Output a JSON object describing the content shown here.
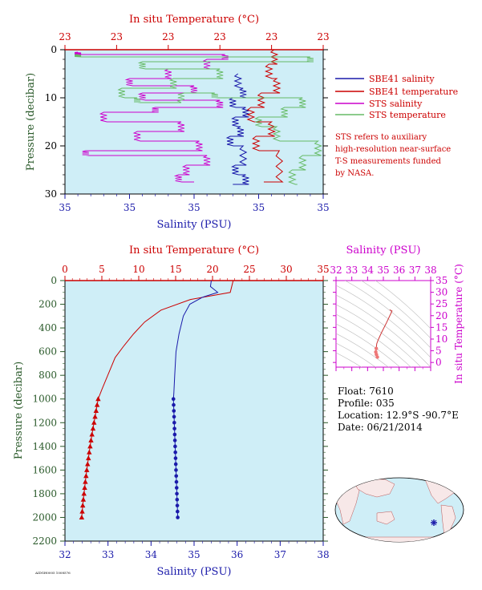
{
  "chart_data": [
    {
      "type": "line",
      "title": "In situ Temperature (°C)",
      "xlabel": "Salinity (PSU)",
      "ylabel": "Pressure (decibar)",
      "top_ticks": [
        "23",
        "23",
        "23",
        "23",
        "23",
        "23"
      ],
      "bottom_ticks": [
        "35",
        "35",
        "35",
        "35",
        "35"
      ],
      "y_ticks": [
        "0",
        "10",
        "20",
        "30"
      ],
      "ylim": [
        0,
        30
      ],
      "grid": false,
      "legend_position": "right",
      "legend": [
        {
          "label": "SBE41 salinity",
          "color": "#1a1aaa"
        },
        {
          "label": "SBE41 temperature",
          "color": "#cc0000"
        },
        {
          "label": "STS salinity",
          "color": "#cc00cc"
        },
        {
          "label": "STS temperature",
          "color": "#66bb66"
        }
      ],
      "note": [
        "STS refers to auxiliary",
        "high-resolution near-surface",
        "T-S measurements funded",
        "by NASA."
      ],
      "series": [
        {
          "name": "SBE41 salinity",
          "color": "#1a1aaa",
          "x": [
            0.67,
            0.69,
            0.65,
            0.7,
            0.66,
            0.68,
            0.64,
            0.69,
            0.66,
            0.7,
            0.65
          ],
          "pressure": [
            5,
            8,
            10,
            12,
            14,
            16,
            18,
            20,
            24,
            26,
            28
          ]
        },
        {
          "name": "SBE41 temperature",
          "color": "#cc0000",
          "x": [
            0.81,
            0.79,
            0.82,
            0.76,
            0.72,
            0.8,
            0.74,
            0.83,
            0.77
          ],
          "pressure": [
            0,
            3,
            6,
            9,
            12,
            15,
            18,
            21,
            27.5
          ]
        },
        {
          "name": "STS salinity",
          "color": "#cc00cc",
          "x": [
            0.05,
            0.62,
            0.55,
            0.4,
            0.25,
            0.5,
            0.3,
            0.6,
            0.35,
            0.15,
            0.45,
            0.28,
            0.52,
            0.08,
            0.55,
            0.47,
            0.44,
            0.5
          ],
          "pressure": [
            0.5,
            1.0,
            2,
            4,
            6,
            7.5,
            9,
            10.5,
            12,
            13,
            15,
            17,
            19,
            21,
            22,
            24,
            26,
            27.5
          ]
        },
        {
          "name": "STS temperature",
          "color": "#66bb66",
          "x": [
            0.05,
            0.95,
            0.3,
            0.6,
            0.42,
            0.22,
            0.28,
            0.45,
            0.58,
            0.92,
            0.85,
            0.75,
            0.82,
            0.98,
            0.92,
            0.88,
            0.9
          ],
          "pressure": [
            1.0,
            1.5,
            2.5,
            4,
            6,
            8,
            10,
            11,
            9,
            10,
            12,
            14,
            16,
            19,
            22,
            25,
            28
          ]
        }
      ]
    },
    {
      "type": "line",
      "title": "In situ Temperature (°C)",
      "xlabel": "Salinity (PSU)",
      "ylabel": "Pressure (decibar)",
      "temperature_axis": {
        "range": [
          0,
          35
        ],
        "ticks": [
          "0",
          "5",
          "10",
          "15",
          "20",
          "25",
          "30",
          "35"
        ]
      },
      "salinity_axis": {
        "range": [
          32,
          38
        ],
        "ticks": [
          "32",
          "33",
          "34",
          "35",
          "36",
          "37",
          "38"
        ]
      },
      "pressure_axis": {
        "range": [
          0,
          2200
        ],
        "ticks": [
          "0",
          "200",
          "400",
          "600",
          "800",
          "1000",
          "1200",
          "1400",
          "1600",
          "1800",
          "2000",
          "2200"
        ]
      },
      "grid": false,
      "series": [
        {
          "name": "Temperature",
          "color": "#cc0000",
          "marker": "triangle",
          "marker_from_pressure": 1000,
          "points": [
            [
              22.8,
              0
            ],
            [
              22.4,
              100
            ],
            [
              17.0,
              160
            ],
            [
              13.0,
              250
            ],
            [
              10.8,
              350
            ],
            [
              9.3,
              450
            ],
            [
              8.0,
              550
            ],
            [
              6.8,
              650
            ],
            [
              5.8,
              800
            ],
            [
              5.0,
              920
            ],
            [
              4.5,
              1000
            ],
            [
              4.36,
              1050
            ],
            [
              4.22,
              1100
            ],
            [
              4.08,
              1150
            ],
            [
              3.94,
              1200
            ],
            [
              3.8,
              1250
            ],
            [
              3.66,
              1300
            ],
            [
              3.53,
              1350
            ],
            [
              3.41,
              1400
            ],
            [
              3.29,
              1450
            ],
            [
              3.18,
              1500
            ],
            [
              3.07,
              1550
            ],
            [
              2.96,
              1600
            ],
            [
              2.86,
              1650
            ],
            [
              2.76,
              1700
            ],
            [
              2.67,
              1750
            ],
            [
              2.58,
              1800
            ],
            [
              2.49,
              1850
            ],
            [
              2.41,
              1900
            ],
            [
              2.34,
              1950
            ],
            [
              2.27,
              2000
            ]
          ]
        },
        {
          "name": "Salinity",
          "color": "#1a1aaa",
          "marker": "circle",
          "marker_from_pressure": 1000,
          "points": [
            [
              35.4,
              0
            ],
            [
              35.38,
              50
            ],
            [
              35.55,
              100
            ],
            [
              35.2,
              140
            ],
            [
              34.9,
              200
            ],
            [
              34.75,
              300
            ],
            [
              34.65,
              450
            ],
            [
              34.58,
              600
            ],
            [
              34.55,
              800
            ],
            [
              34.53,
              950
            ],
            [
              34.52,
              1000
            ],
            [
              34.525,
              1050
            ],
            [
              34.53,
              1100
            ],
            [
              34.535,
              1150
            ],
            [
              34.54,
              1200
            ],
            [
              34.545,
              1250
            ],
            [
              34.55,
              1300
            ],
            [
              34.555,
              1350
            ],
            [
              34.56,
              1400
            ],
            [
              34.565,
              1450
            ],
            [
              34.57,
              1500
            ],
            [
              34.575,
              1550
            ],
            [
              34.58,
              1600
            ],
            [
              34.585,
              1650
            ],
            [
              34.59,
              1700
            ],
            [
              34.595,
              1750
            ],
            [
              34.6,
              1800
            ],
            [
              34.605,
              1850
            ],
            [
              34.61,
              1900
            ],
            [
              34.615,
              1950
            ],
            [
              34.62,
              2000
            ]
          ]
        }
      ]
    },
    {
      "type": "line",
      "title": "Salinity (PSU)",
      "ylabel": "In situ Temperature (°C)",
      "xlim": [
        32,
        38
      ],
      "ylim": [
        -2,
        35
      ],
      "x_ticks": [
        "32",
        "33",
        "34",
        "35",
        "36",
        "37",
        "38"
      ],
      "y_ticks": [
        "0",
        "5",
        "10",
        "15",
        "20",
        "25",
        "30",
        "35"
      ],
      "color": "#cc3333",
      "points": [
        [
          35.4,
          22.5
        ],
        [
          35.55,
          22.0
        ],
        [
          35.2,
          17.0
        ],
        [
          34.9,
          13.0
        ],
        [
          34.75,
          10.8
        ],
        [
          34.65,
          9.3
        ],
        [
          34.58,
          8.0
        ],
        [
          34.55,
          6.0
        ],
        [
          34.52,
          4.5
        ],
        [
          34.56,
          3.4
        ],
        [
          34.62,
          2.3
        ]
      ]
    }
  ],
  "float_info": {
    "float": "Float:  7610",
    "profile": "Profile:  035",
    "location": "Location:  12.9°S  -90.7°E",
    "date": "Date:  06/21/2014"
  },
  "footer": "AIDGH0005 1008576"
}
